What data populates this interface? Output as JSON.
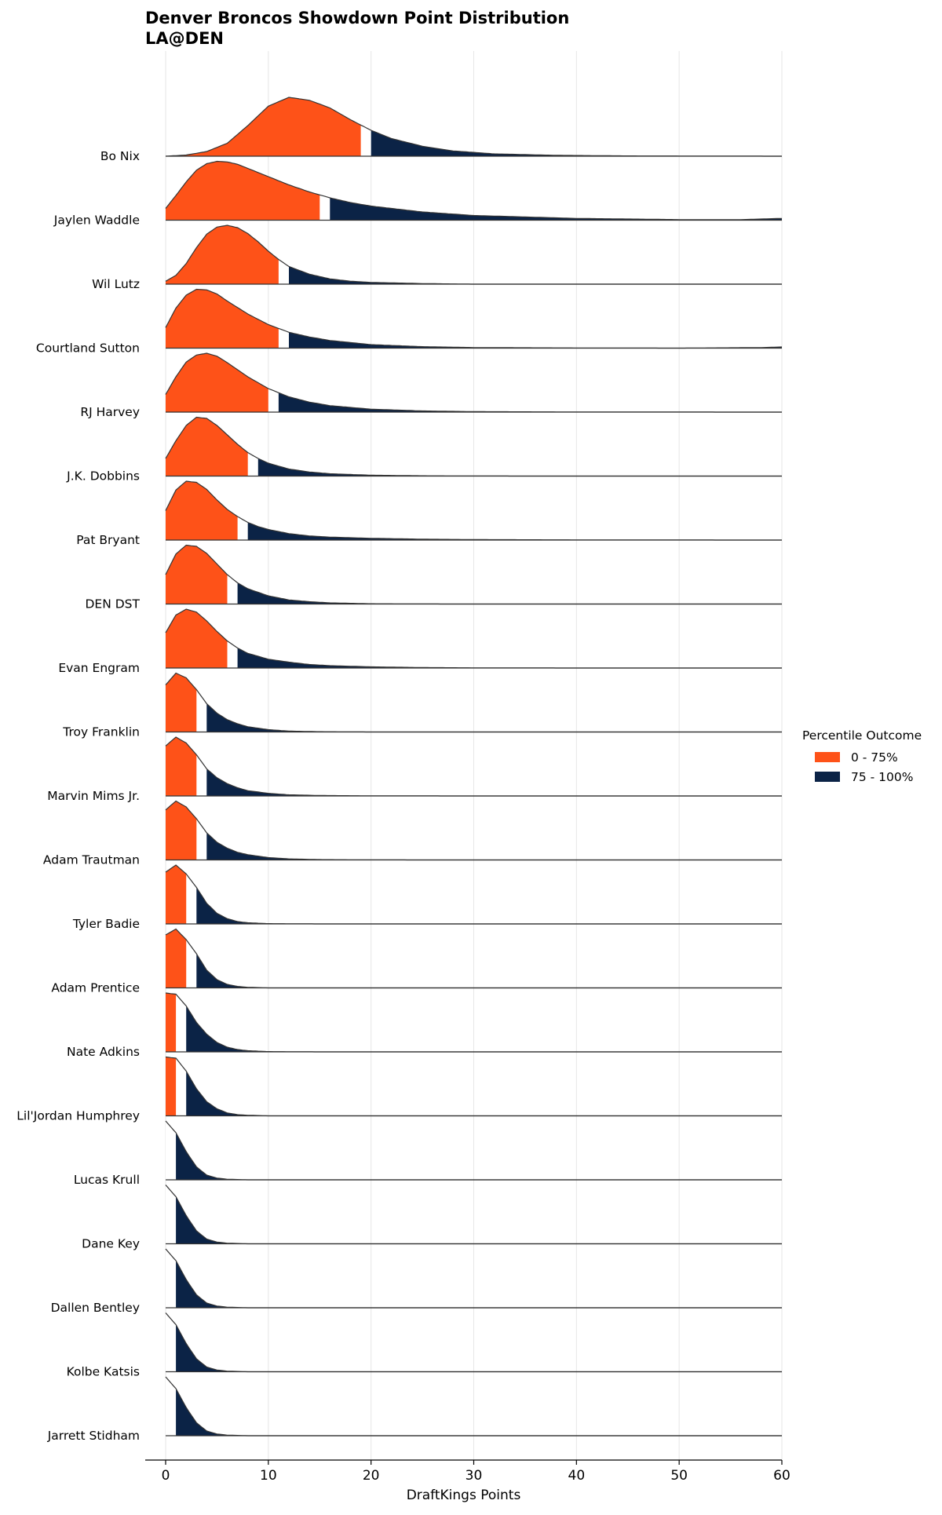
{
  "title": "Denver Broncos Showdown Point Distribution",
  "subtitle": "LA@DEN",
  "legend": {
    "title": "Percentile Outcome",
    "items": [
      {
        "label": "0 - 75%",
        "color": "#fe5218"
      },
      {
        "label": "75 - 100%",
        "color": "#0b2346"
      }
    ]
  },
  "chart_data": {
    "type": "area",
    "subtype": "ridgeline",
    "xlabel": "DraftKings Points",
    "ylabel": "",
    "xlim": [
      -2,
      60
    ],
    "xticks": [
      0,
      10,
      20,
      30,
      40,
      50,
      60
    ],
    "grid": "vertical",
    "legend_position": "right",
    "series": [
      {
        "name": "Bo Nix",
        "x": [
          0,
          2,
          4,
          6,
          8,
          10,
          12,
          14,
          16,
          18,
          20,
          22,
          25,
          28,
          32,
          38,
          45,
          60
        ],
        "density": [
          0.0,
          0.02,
          0.08,
          0.22,
          0.52,
          0.85,
          1.0,
          0.95,
          0.82,
          0.62,
          0.44,
          0.3,
          0.17,
          0.09,
          0.04,
          0.015,
          0.005,
          0.0
        ],
        "p75_low": 19,
        "p75_high": 20
      },
      {
        "name": "Jaylen Waddle",
        "x": [
          0,
          1,
          2,
          3,
          4,
          5,
          6,
          7,
          8,
          10,
          12,
          14,
          16,
          18,
          20,
          25,
          30,
          40,
          50,
          56,
          60
        ],
        "density": [
          0.2,
          0.42,
          0.65,
          0.85,
          0.96,
          1.0,
          0.99,
          0.95,
          0.88,
          0.74,
          0.6,
          0.48,
          0.38,
          0.3,
          0.24,
          0.14,
          0.08,
          0.03,
          0.01,
          0.01,
          0.03
        ],
        "p75_low": 15,
        "p75_high": 16
      },
      {
        "name": "Wil Lutz",
        "x": [
          0,
          1,
          2,
          3,
          4,
          5,
          6,
          7,
          8,
          9,
          10,
          11,
          12,
          14,
          16,
          18,
          20,
          25,
          30,
          60
        ],
        "density": [
          0.05,
          0.15,
          0.35,
          0.62,
          0.85,
          0.97,
          1.0,
          0.96,
          0.86,
          0.72,
          0.56,
          0.42,
          0.3,
          0.17,
          0.09,
          0.05,
          0.03,
          0.01,
          0.0,
          0.0
        ],
        "p75_low": 11,
        "p75_high": 12
      },
      {
        "name": "Courtland Sutton",
        "x": [
          0,
          1,
          2,
          3,
          4,
          5,
          6,
          8,
          10,
          12,
          14,
          16,
          20,
          25,
          30,
          40,
          50,
          58,
          60
        ],
        "density": [
          0.35,
          0.68,
          0.9,
          1.0,
          0.99,
          0.92,
          0.8,
          0.58,
          0.4,
          0.27,
          0.19,
          0.13,
          0.06,
          0.025,
          0.01,
          0.003,
          0.0,
          0.01,
          0.02
        ],
        "p75_low": 11,
        "p75_high": 12
      },
      {
        "name": "RJ Harvey",
        "x": [
          0,
          1,
          2,
          3,
          4,
          5,
          6,
          8,
          10,
          12,
          14,
          16,
          20,
          25,
          30,
          40,
          60
        ],
        "density": [
          0.3,
          0.6,
          0.85,
          0.97,
          1.0,
          0.95,
          0.84,
          0.6,
          0.4,
          0.26,
          0.17,
          0.11,
          0.05,
          0.02,
          0.008,
          0.002,
          0.0
        ],
        "p75_low": 10,
        "p75_high": 11
      },
      {
        "name": "J.K. Dobbins",
        "x": [
          0,
          1,
          2,
          3,
          4,
          5,
          6,
          7,
          8,
          9,
          10,
          12,
          14,
          16,
          20,
          25,
          30,
          40,
          60
        ],
        "density": [
          0.3,
          0.6,
          0.86,
          1.0,
          0.98,
          0.86,
          0.7,
          0.54,
          0.4,
          0.3,
          0.22,
          0.12,
          0.07,
          0.04,
          0.015,
          0.005,
          0.001,
          0.0,
          0.0
        ],
        "p75_low": 8,
        "p75_high": 9
      },
      {
        "name": "Pat Bryant",
        "x": [
          0,
          1,
          2,
          3,
          4,
          5,
          6,
          7,
          8,
          9,
          10,
          12,
          14,
          16,
          20,
          25,
          30,
          40,
          50,
          60
        ],
        "density": [
          0.5,
          0.85,
          1.0,
          0.98,
          0.86,
          0.68,
          0.52,
          0.4,
          0.3,
          0.23,
          0.18,
          0.11,
          0.07,
          0.05,
          0.03,
          0.015,
          0.008,
          0.003,
          0.001,
          0.0
        ],
        "p75_low": 7,
        "p75_high": 8
      },
      {
        "name": "DEN DST",
        "x": [
          0,
          1,
          2,
          3,
          4,
          5,
          6,
          7,
          8,
          10,
          12,
          14,
          16,
          20,
          25,
          30,
          60
        ],
        "density": [
          0.5,
          0.85,
          1.0,
          0.98,
          0.86,
          0.68,
          0.5,
          0.36,
          0.26,
          0.14,
          0.07,
          0.04,
          0.02,
          0.005,
          0.001,
          0.0,
          0.0
        ],
        "p75_low": 6,
        "p75_high": 7
      },
      {
        "name": "Evan Engram",
        "x": [
          0,
          1,
          2,
          3,
          4,
          5,
          6,
          7,
          8,
          10,
          12,
          14,
          16,
          20,
          25,
          30,
          40,
          60
        ],
        "density": [
          0.6,
          0.9,
          1.0,
          0.95,
          0.8,
          0.62,
          0.46,
          0.34,
          0.25,
          0.15,
          0.1,
          0.06,
          0.04,
          0.02,
          0.008,
          0.003,
          0.0,
          0.0
        ],
        "p75_low": 6,
        "p75_high": 7
      },
      {
        "name": "Troy Franklin",
        "x": [
          0,
          1,
          2,
          3,
          4,
          5,
          6,
          7,
          8,
          10,
          12,
          15,
          20,
          30,
          60
        ],
        "density": [
          0.8,
          1.0,
          0.92,
          0.72,
          0.48,
          0.32,
          0.21,
          0.14,
          0.09,
          0.04,
          0.015,
          0.005,
          0.0,
          0.0,
          0.0
        ],
        "p75_low": 3,
        "p75_high": 4
      },
      {
        "name": "Marvin Mims Jr.",
        "x": [
          0,
          1,
          2,
          3,
          4,
          5,
          6,
          7,
          8,
          10,
          12,
          15,
          20,
          30,
          60
        ],
        "density": [
          0.85,
          1.0,
          0.9,
          0.7,
          0.46,
          0.31,
          0.21,
          0.14,
          0.09,
          0.045,
          0.02,
          0.008,
          0.002,
          0.0,
          0.0
        ],
        "p75_low": 3,
        "p75_high": 4
      },
      {
        "name": "Adam Trautman",
        "x": [
          0,
          1,
          2,
          3,
          4,
          5,
          6,
          7,
          8,
          10,
          12,
          15,
          20,
          30,
          60
        ],
        "density": [
          0.85,
          1.0,
          0.9,
          0.7,
          0.46,
          0.3,
          0.2,
          0.13,
          0.09,
          0.04,
          0.018,
          0.006,
          0.001,
          0.0,
          0.0
        ],
        "p75_low": 3,
        "p75_high": 4
      },
      {
        "name": "Tyler Badie",
        "x": [
          0,
          1,
          2,
          3,
          4,
          5,
          6,
          7,
          8,
          10,
          15,
          60
        ],
        "density": [
          0.88,
          1.0,
          0.85,
          0.62,
          0.35,
          0.18,
          0.09,
          0.04,
          0.02,
          0.005,
          0.0,
          0.0
        ],
        "p75_low": 2,
        "p75_high": 3
      },
      {
        "name": "Adam Prentice",
        "x": [
          0,
          1,
          2,
          3,
          4,
          5,
          6,
          7,
          8,
          10,
          15,
          60
        ],
        "density": [
          0.9,
          1.0,
          0.82,
          0.58,
          0.3,
          0.14,
          0.06,
          0.025,
          0.01,
          0.0,
          0.0,
          0.0
        ],
        "p75_low": 2,
        "p75_high": 3
      },
      {
        "name": "Nate Adkins",
        "x": [
          0,
          1,
          2,
          3,
          4,
          5,
          6,
          7,
          8,
          10,
          15,
          60
        ],
        "density": [
          1.0,
          0.98,
          0.78,
          0.5,
          0.3,
          0.16,
          0.08,
          0.04,
          0.02,
          0.005,
          0.0,
          0.0
        ],
        "p75_low": 1,
        "p75_high": 2
      },
      {
        "name": "Lil'Jordan Humphrey",
        "x": [
          0,
          1,
          2,
          3,
          4,
          5,
          6,
          7,
          8,
          10,
          15,
          60
        ],
        "density": [
          1.0,
          0.98,
          0.76,
          0.46,
          0.24,
          0.12,
          0.05,
          0.02,
          0.01,
          0.0,
          0.0,
          0.0
        ],
        "p75_low": 1,
        "p75_high": 2
      },
      {
        "name": "Lucas Krull",
        "x": [
          0,
          1,
          2,
          3,
          4,
          5,
          6,
          8,
          60
        ],
        "density": [
          1.0,
          0.8,
          0.48,
          0.22,
          0.08,
          0.03,
          0.01,
          0.0,
          0.0
        ],
        "p75_low": 0,
        "p75_high": 1
      },
      {
        "name": "Dane Key",
        "x": [
          0,
          1,
          2,
          3,
          4,
          5,
          6,
          8,
          60
        ],
        "density": [
          1.0,
          0.8,
          0.48,
          0.22,
          0.08,
          0.03,
          0.01,
          0.0,
          0.0
        ],
        "p75_low": 0,
        "p75_high": 1
      },
      {
        "name": "Dallen Bentley",
        "x": [
          0,
          1,
          2,
          3,
          4,
          5,
          6,
          8,
          60
        ],
        "density": [
          1.0,
          0.8,
          0.48,
          0.22,
          0.08,
          0.03,
          0.01,
          0.0,
          0.0
        ],
        "p75_low": 0,
        "p75_high": 1
      },
      {
        "name": "Kolbe Katsis",
        "x": [
          0,
          1,
          2,
          3,
          4,
          5,
          6,
          8,
          60
        ],
        "density": [
          1.0,
          0.8,
          0.48,
          0.22,
          0.08,
          0.03,
          0.01,
          0.0,
          0.0
        ],
        "p75_low": 0,
        "p75_high": 1
      },
      {
        "name": "Jarrett Stidham",
        "x": [
          0,
          1,
          2,
          3,
          4,
          5,
          6,
          8,
          60
        ],
        "density": [
          1.0,
          0.8,
          0.48,
          0.22,
          0.08,
          0.03,
          0.01,
          0.0,
          0.0
        ],
        "p75_low": 0,
        "p75_high": 1
      }
    ]
  }
}
